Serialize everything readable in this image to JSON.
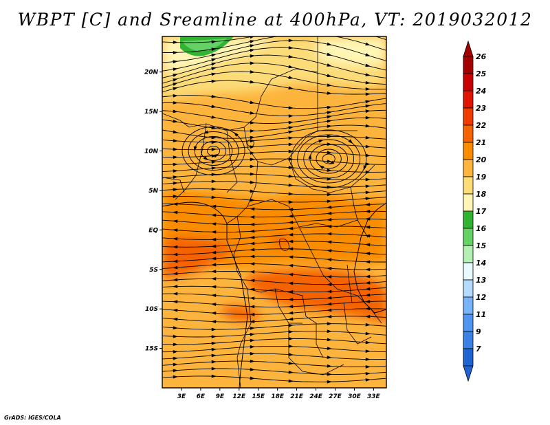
{
  "title": "WBPT [C] and Sreamline at 400hPa, VT: 2019032012",
  "credit": "GrADS: IGES/COLA",
  "map": {
    "lon_range": [
      0,
      35
    ],
    "lat_range": [
      -20,
      24.5
    ],
    "x_ticks": [
      "3E",
      "6E",
      "9E",
      "12E",
      "15E",
      "18E",
      "21E",
      "24E",
      "27E",
      "30E",
      "33E"
    ],
    "y_ticks": [
      "20N",
      "15N",
      "10N",
      "5N",
      "EQ",
      "5S",
      "10S",
      "15S"
    ],
    "field": "Wet-bulb potential temperature (C) at 400hPa",
    "streamlines": "wind streamlines with arrowheads, mostly westerly/easterly flow",
    "features": [
      "cyclonic circulation near 26E 9N",
      "anticyclonic circulation near 9E 10N",
      "green cool region north-west near 5E 23N"
    ]
  },
  "colorbar": {
    "labels": [
      "26",
      "25",
      "24",
      "23",
      "22",
      "21",
      "20",
      "19",
      "18",
      "17",
      "16",
      "15",
      "14",
      "13",
      "12",
      "11",
      "9",
      "7"
    ],
    "colors": [
      "#a50000",
      "#c80000",
      "#e11400",
      "#f03c00",
      "#f56400",
      "#fa8c00",
      "#fcb43c",
      "#fcdc78",
      "#fff5b4",
      "#32b432",
      "#64d264",
      "#b4f0b4",
      "#e6faff",
      "#b4dcff",
      "#78b4fa",
      "#5096f0",
      "#3c82e6",
      "#1e64d2"
    ]
  }
}
